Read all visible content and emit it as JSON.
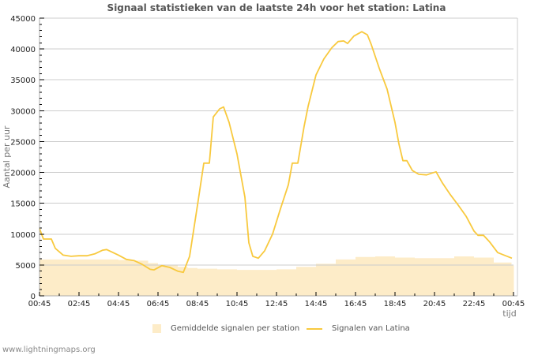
{
  "title": "Signaal statistieken van de laatste 24h voor het station: Latina",
  "footer": "www.lightningmaps.org",
  "legend": [
    {
      "label": "Gemiddelde signalen per station",
      "type": "area",
      "color": "#fdecc8"
    },
    {
      "label": "Signalen van Latina",
      "type": "line",
      "color": "#f8c93e"
    }
  ],
  "chart_data": {
    "type": "line",
    "title": "Signaal statistieken van de laatste 24h voor het station: Latina",
    "xlabel": "tijd",
    "ylabel": "Aantal per uur",
    "ylim": [
      0,
      45000
    ],
    "yticks": [
      0,
      5000,
      10000,
      15000,
      20000,
      25000,
      30000,
      35000,
      40000,
      45000
    ],
    "xticks": [
      "00:45",
      "02:45",
      "04:45",
      "06:45",
      "08:45",
      "10:45",
      "12:45",
      "14:45",
      "16:45",
      "18:45",
      "20:45",
      "22:45",
      "00:45"
    ],
    "xlim_hours": [
      0,
      24
    ],
    "grid": "horizontal",
    "legend_position": "bottom",
    "series": [
      {
        "name": "Gemiddelde signalen per station",
        "type": "area",
        "color": "#fdecc8",
        "x_hours": [
          0,
          1,
          2,
          3,
          4,
          4.8,
          5.5,
          6,
          7,
          7.5,
          8,
          9,
          10,
          11,
          12,
          13,
          14,
          15,
          16,
          17,
          18,
          19,
          20,
          21,
          22,
          23,
          23.9
        ],
        "values": [
          5900,
          5900,
          5900,
          5900,
          5800,
          5700,
          5300,
          5000,
          4700,
          4500,
          4400,
          4300,
          4200,
          4200,
          4300,
          4700,
          5200,
          5900,
          6300,
          6400,
          6200,
          6100,
          6100,
          6400,
          6200,
          5400,
          4900
        ]
      },
      {
        "name": "Signalen van Latina",
        "type": "line",
        "color": "#f8c93e",
        "x_hours": [
          0,
          0.2,
          0.6,
          0.8,
          1.2,
          1.6,
          2,
          2.4,
          2.8,
          3.2,
          3.4,
          4,
          4.4,
          4.8,
          5.2,
          5.6,
          5.8,
          6.2,
          6.6,
          7,
          7.28,
          7.6,
          8,
          8.32,
          8.6,
          8.8,
          9.12,
          9.32,
          9.6,
          10,
          10.4,
          10.6,
          10.8,
          11.08,
          11.4,
          11.8,
          12.2,
          12.6,
          12.8,
          13.08,
          13.4,
          13.6,
          14,
          14.4,
          14.8,
          15.12,
          15.4,
          15.6,
          15.92,
          16.32,
          16.6,
          16.8,
          17.2,
          17.6,
          18,
          18.2,
          18.4,
          18.6,
          18.88,
          19.2,
          19.6,
          19.88,
          20.08,
          20.4,
          20.8,
          21.2,
          21.6,
          22,
          22.2,
          22.48,
          22.8,
          23.2,
          23.92
        ],
        "values": [
          10900,
          9200,
          9200,
          7700,
          6600,
          6400,
          6500,
          6500,
          6800,
          7400,
          7500,
          6600,
          5900,
          5700,
          5100,
          4300,
          4200,
          4900,
          4600,
          4000,
          3800,
          6400,
          14700,
          21500,
          21500,
          29000,
          30300,
          30600,
          28100,
          23000,
          16000,
          8600,
          6400,
          6100,
          7300,
          10000,
          14100,
          18000,
          21500,
          21500,
          27500,
          30700,
          35800,
          38400,
          40200,
          41200,
          41300,
          40900,
          42100,
          42800,
          42300,
          40700,
          36900,
          33500,
          28100,
          24600,
          21900,
          21900,
          20300,
          19700,
          19600,
          19900,
          20100,
          18300,
          16400,
          14700,
          12900,
          10500,
          9800,
          9800,
          8700,
          7000,
          6100
        ]
      }
    ]
  }
}
